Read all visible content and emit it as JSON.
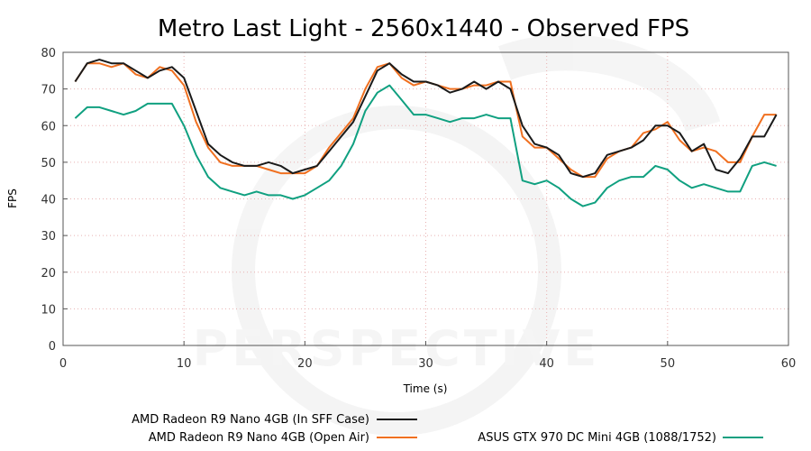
{
  "chart_data": {
    "type": "line",
    "title": "Metro Last Light - 2560x1440 - Observed FPS",
    "xlabel": "Time (s)",
    "ylabel": "FPS",
    "xlim": [
      0,
      60
    ],
    "ylim": [
      0,
      80
    ],
    "xticks": [
      0,
      10,
      20,
      30,
      40,
      50,
      60
    ],
    "yticks": [
      0,
      10,
      20,
      30,
      40,
      50,
      60,
      70,
      80
    ],
    "grid": true,
    "legend_position": "bottom",
    "x": [
      1,
      2,
      3,
      4,
      5,
      6,
      7,
      8,
      9,
      10,
      11,
      12,
      13,
      14,
      15,
      16,
      17,
      18,
      19,
      20,
      21,
      22,
      23,
      24,
      25,
      26,
      27,
      28,
      29,
      30,
      31,
      32,
      33,
      34,
      35,
      36,
      37,
      38,
      39,
      40,
      41,
      42,
      43,
      44,
      45,
      46,
      47,
      48,
      49,
      50,
      51,
      52,
      53,
      54,
      55,
      56,
      57,
      58,
      59
    ],
    "series": [
      {
        "name": "AMD Radeon R9 Nano 4GB (In SFF Case)",
        "color": "#1a1a1a",
        "values": [
          72,
          77,
          78,
          77,
          77,
          75,
          73,
          75,
          76,
          73,
          64,
          55,
          52,
          50,
          49,
          49,
          50,
          49,
          47,
          48,
          49,
          53,
          57,
          61,
          68,
          75,
          77,
          74,
          72,
          72,
          71,
          69,
          70,
          72,
          70,
          72,
          70,
          60,
          55,
          54,
          52,
          47,
          46,
          47,
          52,
          53,
          54,
          56,
          60,
          60,
          58,
          53,
          55,
          48,
          47,
          51,
          57,
          57,
          63
        ]
      },
      {
        "name": "AMD Radeon R9 Nano 4GB (Open Air)",
        "color": "#f07020",
        "values": [
          72,
          77,
          77,
          76,
          77,
          74,
          73,
          76,
          75,
          71,
          61,
          54,
          50,
          49,
          49,
          49,
          48,
          47,
          47,
          47,
          49,
          54,
          58,
          62,
          70,
          76,
          77,
          73,
          71,
          72,
          71,
          70,
          70,
          71,
          71,
          72,
          72,
          57,
          54,
          54,
          51,
          48,
          46,
          46,
          51,
          53,
          54,
          58,
          59,
          61,
          56,
          53,
          54,
          53,
          50,
          50,
          57,
          63,
          63
        ]
      },
      {
        "name": "ASUS GTX 970 DC Mini 4GB (1088/1752)",
        "color": "#10a080",
        "values": [
          62,
          65,
          65,
          64,
          63,
          64,
          66,
          66,
          66,
          60,
          52,
          46,
          43,
          42,
          41,
          42,
          41,
          41,
          40,
          41,
          43,
          45,
          49,
          55,
          64,
          69,
          71,
          67,
          63,
          63,
          62,
          61,
          62,
          62,
          63,
          62,
          62,
          45,
          44,
          45,
          43,
          40,
          38,
          39,
          43,
          45,
          46,
          46,
          49,
          48,
          45,
          43,
          44,
          43,
          42,
          42,
          49,
          50,
          49
        ]
      }
    ]
  },
  "watermark_text": "PERSPECTIVE"
}
